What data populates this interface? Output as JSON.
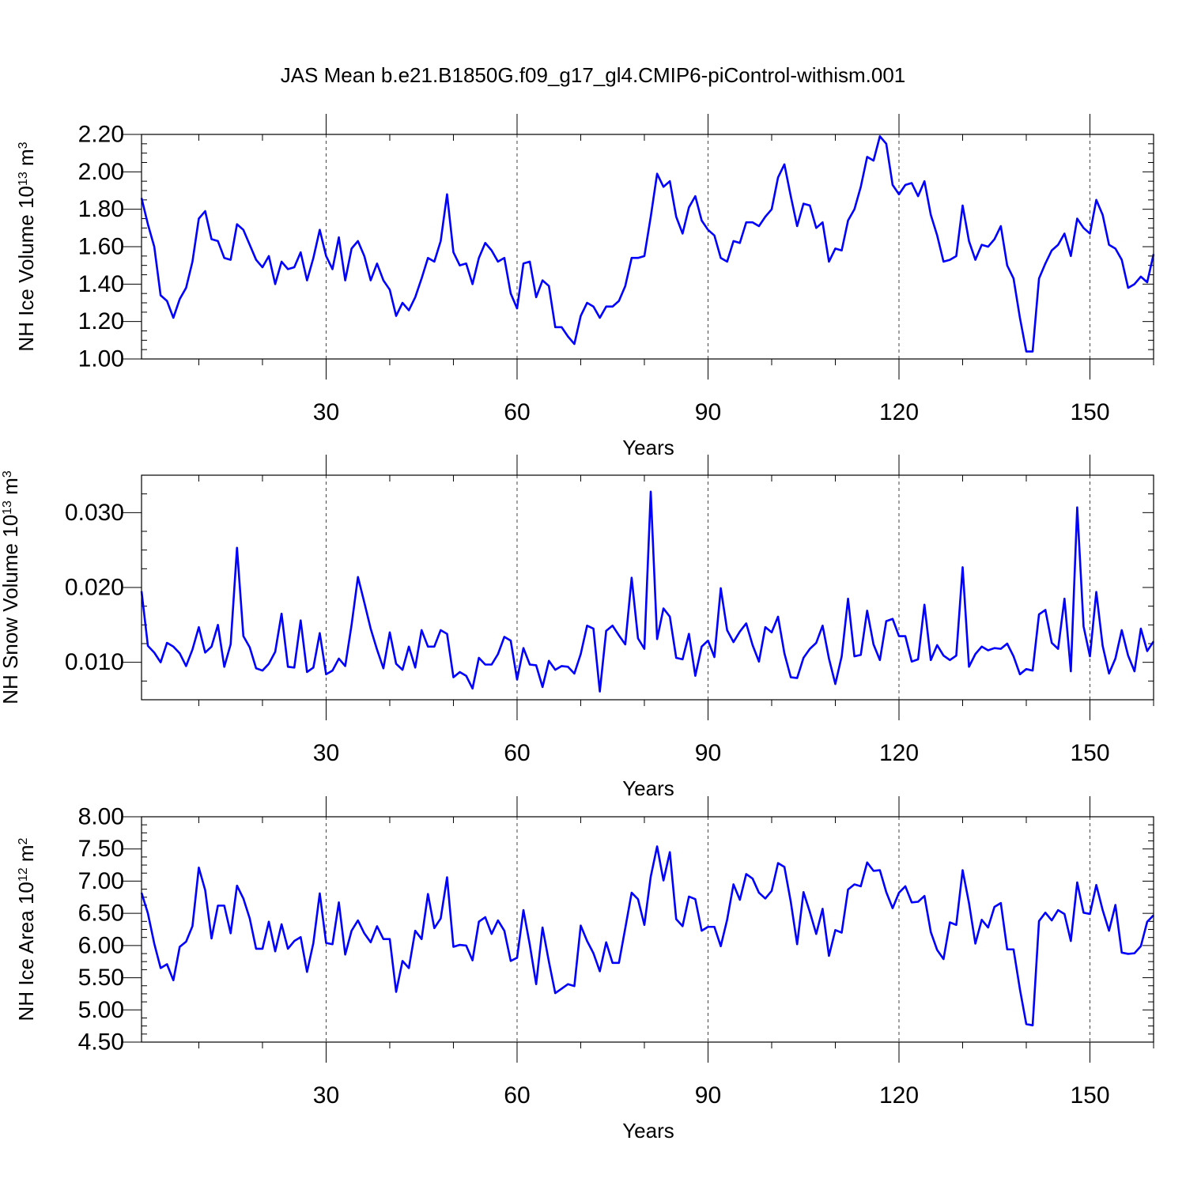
{
  "title": "JAS Mean b.e21.B1850G.f09_g17_gl4.CMIP6-piControl-withism.001",
  "colors": {
    "series": "#0000ff",
    "axis": "#000000",
    "grid": "#444444"
  },
  "chart_data": [
    {
      "type": "line",
      "title": "",
      "xlabel": "Years",
      "ylabel_main": "NH Ice Volume 10",
      "ylabel_exp": "13",
      "ylabel_unit": " m",
      "ylabel_unit_exp": "3",
      "xlim": [
        1,
        160
      ],
      "ylim": [
        1.0,
        2.2
      ],
      "yticks": [
        1.0,
        1.2,
        1.4,
        1.6,
        1.8,
        2.0,
        2.2
      ],
      "ytick_labels": [
        "1.00",
        "1.20",
        "1.40",
        "1.60",
        "1.80",
        "2.00",
        "2.20"
      ],
      "ytick_minor_step": 0.05,
      "xticks": [
        30,
        60,
        90,
        120,
        150
      ],
      "xtick_labels": [
        "30",
        "60",
        "90",
        "120",
        "150"
      ],
      "xtick_minor_step": 10,
      "grid": "dashed vertical at major x ticks",
      "x_start": 1,
      "values": [
        1.86,
        1.72,
        1.6,
        1.34,
        1.31,
        1.22,
        1.32,
        1.38,
        1.52,
        1.75,
        1.79,
        1.64,
        1.63,
        1.54,
        1.53,
        1.72,
        1.69,
        1.61,
        1.53,
        1.49,
        1.55,
        1.4,
        1.52,
        1.48,
        1.49,
        1.57,
        1.42,
        1.54,
        1.69,
        1.55,
        1.48,
        1.65,
        1.42,
        1.59,
        1.63,
        1.55,
        1.42,
        1.51,
        1.42,
        1.37,
        1.23,
        1.3,
        1.26,
        1.33,
        1.43,
        1.54,
        1.52,
        1.63,
        1.88,
        1.57,
        1.5,
        1.51,
        1.4,
        1.54,
        1.62,
        1.58,
        1.52,
        1.54,
        1.35,
        1.27,
        1.51,
        1.52,
        1.33,
        1.42,
        1.39,
        1.17,
        1.17,
        1.12,
        1.08,
        1.23,
        1.3,
        1.28,
        1.22,
        1.28,
        1.28,
        1.31,
        1.39,
        1.54,
        1.54,
        1.55,
        1.76,
        1.99,
        1.92,
        1.95,
        1.76,
        1.67,
        1.81,
        1.87,
        1.74,
        1.69,
        1.66,
        1.54,
        1.52,
        1.63,
        1.62,
        1.73,
        1.73,
        1.71,
        1.76,
        1.8,
        1.97,
        2.04,
        1.87,
        1.71,
        1.83,
        1.82,
        1.7,
        1.73,
        1.52,
        1.59,
        1.58,
        1.74,
        1.8,
        1.92,
        2.08,
        2.06,
        2.19,
        2.15,
        1.93,
        1.88,
        1.93,
        1.94,
        1.87,
        1.95,
        1.77,
        1.66,
        1.52,
        1.53,
        1.55,
        1.82,
        1.63,
        1.53,
        1.61,
        1.6,
        1.64,
        1.71,
        1.5,
        1.43,
        1.22,
        1.04,
        1.04,
        1.43,
        1.51,
        1.58,
        1.61,
        1.67,
        1.55,
        1.75,
        1.7,
        1.67,
        1.85,
        1.77,
        1.61,
        1.59,
        1.53,
        1.38,
        1.4,
        1.44,
        1.41,
        1.56
      ]
    },
    {
      "type": "line",
      "title": "",
      "xlabel": "Years",
      "ylabel_main": "NH Snow Volume 10",
      "ylabel_exp": "13",
      "ylabel_unit": " m",
      "ylabel_unit_exp": "3",
      "xlim": [
        1,
        160
      ],
      "ylim": [
        0.005,
        0.035
      ],
      "yticks": [
        0.01,
        0.02,
        0.03
      ],
      "ytick_labels": [
        "0.010",
        "0.020",
        "0.030"
      ],
      "ytick_minor_step": 0.0025,
      "xticks": [
        30,
        60,
        90,
        120,
        150
      ],
      "xtick_labels": [
        "30",
        "60",
        "90",
        "120",
        "150"
      ],
      "xtick_minor_step": 10,
      "grid": "dashed vertical at major x ticks",
      "x_start": 1,
      "values": [
        0.0195,
        0.0122,
        0.0113,
        0.01,
        0.0126,
        0.0121,
        0.0112,
        0.0095,
        0.0117,
        0.0147,
        0.0113,
        0.0121,
        0.015,
        0.0094,
        0.0124,
        0.0253,
        0.0135,
        0.012,
        0.0092,
        0.0089,
        0.0098,
        0.0114,
        0.0165,
        0.0094,
        0.0093,
        0.0156,
        0.0087,
        0.0093,
        0.0139,
        0.0084,
        0.0089,
        0.0105,
        0.0095,
        0.015,
        0.0214,
        0.018,
        0.0145,
        0.0117,
        0.0092,
        0.014,
        0.0098,
        0.009,
        0.0121,
        0.0093,
        0.0143,
        0.0121,
        0.0121,
        0.0143,
        0.0138,
        0.008,
        0.0087,
        0.0082,
        0.0065,
        0.0106,
        0.0097,
        0.0097,
        0.0111,
        0.0134,
        0.0129,
        0.0077,
        0.0119,
        0.0097,
        0.0096,
        0.0067,
        0.0102,
        0.009,
        0.0095,
        0.0094,
        0.0085,
        0.0111,
        0.0149,
        0.0145,
        0.0061,
        0.0142,
        0.0149,
        0.0136,
        0.0124,
        0.0213,
        0.0132,
        0.0118,
        0.0328,
        0.0131,
        0.0172,
        0.0161,
        0.0106,
        0.0104,
        0.0138,
        0.0082,
        0.0121,
        0.0129,
        0.0107,
        0.0199,
        0.0143,
        0.0127,
        0.0141,
        0.0152,
        0.0123,
        0.0101,
        0.0147,
        0.014,
        0.0161,
        0.0112,
        0.008,
        0.0079,
        0.0106,
        0.0118,
        0.0126,
        0.0149,
        0.0105,
        0.0071,
        0.0108,
        0.0185,
        0.0108,
        0.011,
        0.0169,
        0.0124,
        0.0103,
        0.0155,
        0.0158,
        0.0135,
        0.0135,
        0.0101,
        0.0104,
        0.0177,
        0.0103,
        0.0123,
        0.0109,
        0.0103,
        0.0109,
        0.0227,
        0.0094,
        0.0111,
        0.0121,
        0.0116,
        0.0119,
        0.0118,
        0.0125,
        0.0108,
        0.0084,
        0.0091,
        0.0089,
        0.0164,
        0.017,
        0.0126,
        0.0118,
        0.0185,
        0.0088,
        0.0307,
        0.0148,
        0.0108,
        0.0194,
        0.0122,
        0.0085,
        0.0105,
        0.0143,
        0.0109,
        0.0088,
        0.0145,
        0.0115,
        0.0128
      ]
    },
    {
      "type": "line",
      "title": "",
      "xlabel": "Years",
      "ylabel_main": "NH Ice Area 10",
      "ylabel_exp": "12",
      "ylabel_unit": " m",
      "ylabel_unit_exp": "2",
      "xlim": [
        1,
        160
      ],
      "ylim": [
        4.5,
        8.0
      ],
      "yticks": [
        4.5,
        5.0,
        5.5,
        6.0,
        6.5,
        7.0,
        7.5,
        8.0
      ],
      "ytick_labels": [
        "4.50",
        "5.00",
        "5.50",
        "6.00",
        "6.50",
        "7.00",
        "7.50",
        "8.00"
      ],
      "ytick_minor_step": 0.125,
      "xticks": [
        30,
        60,
        90,
        120,
        150
      ],
      "xtick_labels": [
        "30",
        "60",
        "90",
        "120",
        "150"
      ],
      "xtick_minor_step": 10,
      "grid": "dashed vertical at major x ticks",
      "x_start": 1,
      "values": [
        6.82,
        6.5,
        6.03,
        5.65,
        5.71,
        5.46,
        5.98,
        6.06,
        6.3,
        7.21,
        6.86,
        6.11,
        6.62,
        6.62,
        6.19,
        6.93,
        6.73,
        6.42,
        5.95,
        5.95,
        6.37,
        5.91,
        6.33,
        5.95,
        6.07,
        6.13,
        5.59,
        6.04,
        6.81,
        6.04,
        6.02,
        6.67,
        5.86,
        6.23,
        6.39,
        6.19,
        6.05,
        6.3,
        6.1,
        6.1,
        5.28,
        5.76,
        5.65,
        6.23,
        6.1,
        6.8,
        6.27,
        6.42,
        7.06,
        5.98,
        6.01,
        6.0,
        5.77,
        6.37,
        6.44,
        6.18,
        6.39,
        6.23,
        5.76,
        5.81,
        6.55,
        6.01,
        5.4,
        6.28,
        5.75,
        5.26,
        5.33,
        5.4,
        5.37,
        6.31,
        6.07,
        5.88,
        5.6,
        6.05,
        5.73,
        5.73,
        6.27,
        6.82,
        6.72,
        6.32,
        7.07,
        7.54,
        7.01,
        7.45,
        6.41,
        6.3,
        6.76,
        6.72,
        6.23,
        6.29,
        6.29,
        5.99,
        6.4,
        6.95,
        6.71,
        7.11,
        7.04,
        6.82,
        6.73,
        6.85,
        7.28,
        7.22,
        6.68,
        6.02,
        6.83,
        6.52,
        6.18,
        6.57,
        5.84,
        6.24,
        6.2,
        6.87,
        6.95,
        6.92,
        7.29,
        7.16,
        7.17,
        6.83,
        6.58,
        6.82,
        6.92,
        6.67,
        6.68,
        6.77,
        6.21,
        5.93,
        5.79,
        6.36,
        6.32,
        7.17,
        6.66,
        6.03,
        6.4,
        6.28,
        6.6,
        6.66,
        5.94,
        5.94,
        5.32,
        4.78,
        4.76,
        6.38,
        6.51,
        6.39,
        6.55,
        6.49,
        6.07,
        6.98,
        6.51,
        6.49,
        6.94,
        6.55,
        6.23,
        6.63,
        5.89,
        5.87,
        5.88,
        5.99,
        6.37,
        6.47
      ]
    }
  ]
}
